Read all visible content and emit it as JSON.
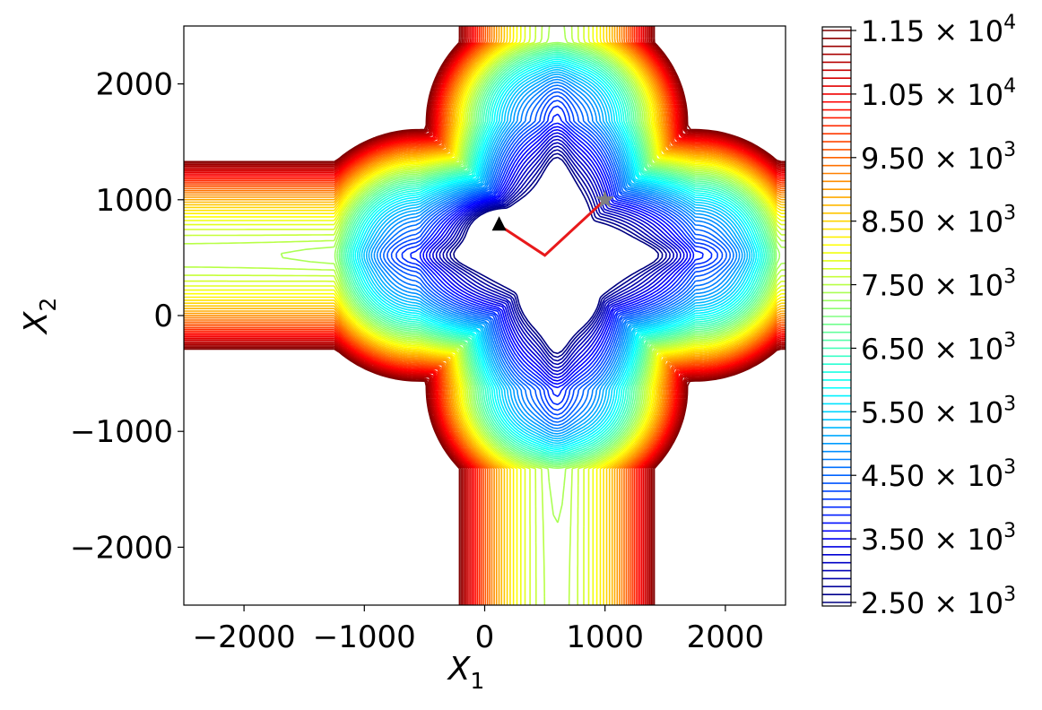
{
  "chart_data": {
    "type": "contour",
    "title": "",
    "xlabel": "X",
    "xlabel_sub": "1",
    "ylabel": "X",
    "ylabel_sub": "2",
    "xlim": [
      -2500,
      2500
    ],
    "ylim": [
      -2500,
      2500
    ],
    "xticks": [
      {
        "value": -2000,
        "label": "−2000"
      },
      {
        "value": -1000,
        "label": "−1000"
      },
      {
        "value": 0,
        "label": "0"
      },
      {
        "value": 1000,
        "label": "1000"
      },
      {
        "value": 2000,
        "label": "2000"
      }
    ],
    "yticks": [
      {
        "value": 2000,
        "label": "2000"
      },
      {
        "value": 1000,
        "label": "1000"
      },
      {
        "value": 0,
        "label": "0"
      },
      {
        "value": -1000,
        "label": "−1000"
      },
      {
        "value": -2000,
        "label": "−2000"
      }
    ],
    "colorbar": {
      "min": 2500,
      "max": 11500,
      "level_step": 125,
      "colormap": "jet",
      "ticks": [
        {
          "value": 11500,
          "mantissa": "1.15",
          "exponent": "4"
        },
        {
          "value": 10500,
          "mantissa": "1.05",
          "exponent": "4"
        },
        {
          "value": 9500,
          "mantissa": "9.50",
          "exponent": "3"
        },
        {
          "value": 8500,
          "mantissa": "8.50",
          "exponent": "3"
        },
        {
          "value": 7500,
          "mantissa": "7.50",
          "exponent": "3"
        },
        {
          "value": 6500,
          "mantissa": "6.50",
          "exponent": "3"
        },
        {
          "value": 5500,
          "mantissa": "5.50",
          "exponent": "3"
        },
        {
          "value": 4500,
          "mantissa": "4.50",
          "exponent": "3"
        },
        {
          "value": 3500,
          "mantissa": "3.50",
          "exponent": "3"
        },
        {
          "value": 2500,
          "mantissa": "2.50",
          "exponent": "3"
        }
      ]
    },
    "surface": {
      "valley_x_center": 600,
      "valley_y_center": 520,
      "arm_half_width": 1150,
      "minima": [
        {
          "x": 120,
          "y": 780,
          "depth": 2500
        },
        {
          "x": 650,
          "y": 160,
          "depth": 2500
        }
      ]
    },
    "path": {
      "color": "#e8191b",
      "points": [
        [
          1000,
          1000
        ],
        [
          500,
          520
        ],
        [
          120,
          780
        ]
      ]
    },
    "markers": [
      {
        "name": "start",
        "shape": "star",
        "color": "#808080",
        "x": 1000,
        "y": 1000
      },
      {
        "name": "end",
        "shape": "triangle",
        "color": "#000000",
        "x": 120,
        "y": 780
      }
    ]
  }
}
